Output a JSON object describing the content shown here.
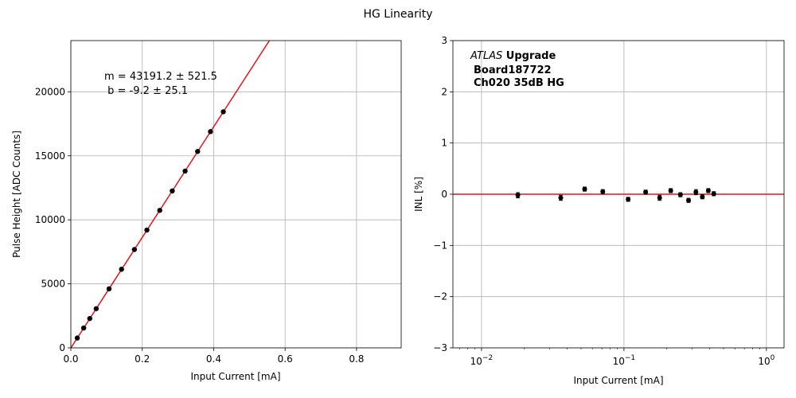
{
  "figure": {
    "suptitle": "HG Linearity",
    "colors": {
      "fit_line": "#e8141a",
      "points": "#000000",
      "grid": "#b0b0b0",
      "inl_zero": "#e8141a"
    }
  },
  "chart_data": [
    {
      "type": "scatter",
      "xlabel": "Input Current [mA]",
      "ylabel": "Pulse Height [ADC Counts]",
      "xlim": [
        0,
        0.925
      ],
      "ylim": [
        0,
        24000
      ],
      "x_ticks": [
        0,
        0.2,
        0.4,
        0.6,
        0.8
      ],
      "x_tick_labels": [
        "0.0",
        "0.2",
        "0.4",
        "0.6",
        "0.8"
      ],
      "y_ticks": [
        0,
        5000,
        10000,
        15000,
        20000
      ],
      "y_tick_labels": [
        "0",
        "5000",
        "10000",
        "15000",
        "20000"
      ],
      "grid": true,
      "fit": {
        "slope": 43191.2,
        "intercept": -9.2
      },
      "annotation": [
        "m = 43191.2 ± 521.5",
        " b = -9.2 ± 25.1"
      ],
      "series": [
        {
          "x": [
            0.018,
            0.036,
            0.053,
            0.071,
            0.107,
            0.142,
            0.178,
            0.213,
            0.249,
            0.284,
            0.32,
            0.355,
            0.391,
            0.427
          ],
          "y": [
            770,
            1550,
            2290,
            3060,
            4610,
            6140,
            7680,
            9200,
            10740,
            12260,
            13810,
            15340,
            16890,
            18440
          ]
        }
      ]
    },
    {
      "type": "scatter",
      "xlabel": "Input Current [mA]",
      "ylabel": "INL [%]",
      "xscale": "log",
      "xlim": [
        0.0063,
        1.33
      ],
      "ylim": [
        -3,
        3
      ],
      "x_ticks": [
        0.01,
        0.1,
        1
      ],
      "x_tick_labels": [
        [
          "10",
          "−2"
        ],
        [
          "10",
          "−1"
        ],
        [
          "10",
          "0"
        ]
      ],
      "y_ticks": [
        -3,
        -2,
        -1,
        0,
        1,
        2,
        3
      ],
      "y_tick_labels": [
        "−3",
        "−2",
        "−1",
        "0",
        "1",
        "2",
        "3"
      ],
      "grid": true,
      "reference_line_y": 0,
      "annotation": {
        "italic": "ATLAS",
        "bold_lines": [
          " Upgrade",
          "Board187722",
          "Ch020 35dB HG"
        ]
      },
      "series": [
        {
          "x": [
            0.018,
            0.036,
            0.053,
            0.071,
            0.107,
            0.142,
            0.178,
            0.213,
            0.249,
            0.284,
            0.32,
            0.355,
            0.391,
            0.427
          ],
          "y": [
            -0.02,
            -0.07,
            0.1,
            0.05,
            -0.1,
            0.04,
            -0.07,
            0.07,
            -0.01,
            -0.12,
            0.04,
            -0.05,
            0.07,
            0.01
          ],
          "yerr": [
            0.05,
            0.05,
            0.04,
            0.04,
            0.04,
            0.04,
            0.05,
            0.04,
            0.04,
            0.04,
            0.05,
            0.04,
            0.04,
            0.04
          ]
        }
      ]
    }
  ]
}
